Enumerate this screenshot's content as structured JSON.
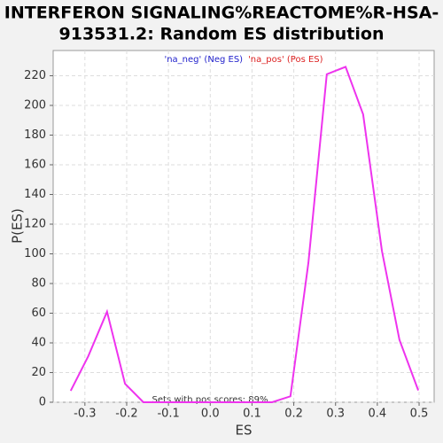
{
  "chart_data": {
    "type": "line",
    "title": [
      "INTERFERON SIGNALING%REACTOME%R-HSA-",
      "913531.2: Random ES distribution"
    ],
    "xlabel": "ES",
    "ylabel": "P(ES)",
    "legend": [
      {
        "name": "'na_neg' (Neg ES)",
        "color": "#2222cc"
      },
      {
        "name": "'na_pos' (Pos ES)",
        "color": "#dd2222"
      }
    ],
    "annotation": "Sets with pos scores: 89%",
    "x": [
      -0.334,
      -0.292,
      -0.247,
      -0.204,
      -0.16,
      -0.116,
      -0.071,
      -0.029,
      0.015,
      0.06,
      0.104,
      0.148,
      0.192,
      0.235,
      0.279,
      0.324,
      0.366,
      0.411,
      0.453,
      0.498
    ],
    "series": [
      {
        "color": "#ee33ee",
        "values": [
          7.7,
          31,
          61,
          12.5,
          0,
          0,
          0,
          0,
          0,
          0,
          0,
          0,
          4,
          94,
          221,
          226,
          194,
          102,
          42,
          8
        ]
      }
    ],
    "xlim": [
      -0.376,
      0.536
    ],
    "ylim": [
      0,
      237
    ],
    "xticks": [
      -0.3,
      -0.2,
      -0.1,
      {
        "value": 0,
        "label": "0.0"
      },
      0.1,
      0.2,
      0.3,
      0.4,
      0.5
    ],
    "yticks": [
      0,
      20,
      40,
      60,
      80,
      100,
      120,
      140,
      160,
      180,
      200,
      220
    ],
    "grid": true
  }
}
